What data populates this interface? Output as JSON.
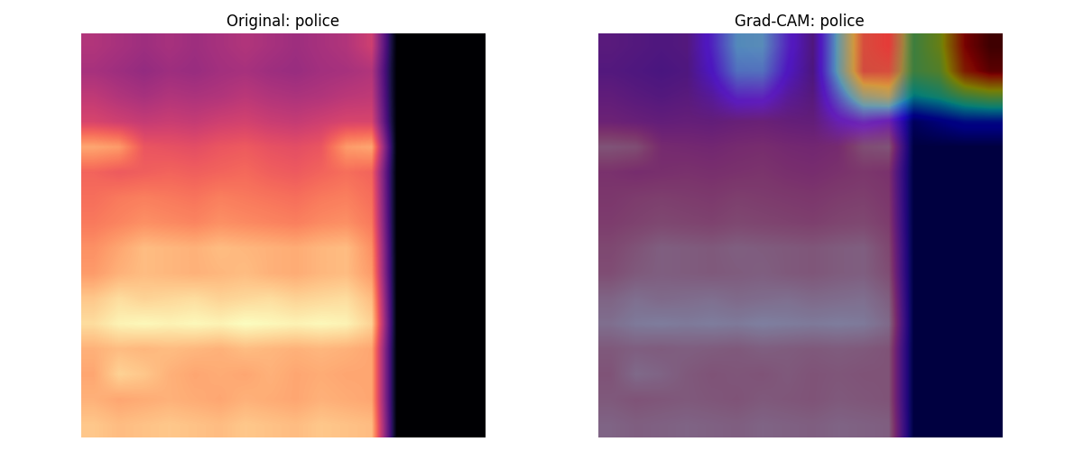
{
  "chart_data": [
    {
      "type": "heatmap",
      "title": "Original: police",
      "tick_labels": false,
      "cells": [
        [
          0.42,
          0.4,
          0.38,
          0.4,
          0.38,
          0.4,
          0.42,
          0.4,
          0.38,
          0.4,
          0.42,
          0.48,
          0,
          0,
          0,
          0
        ],
        [
          0.4,
          0.38,
          0.36,
          0.38,
          0.37,
          0.39,
          0.4,
          0.38,
          0.37,
          0.39,
          0.4,
          0.42,
          0,
          0,
          0,
          0
        ],
        [
          0.45,
          0.42,
          0.4,
          0.42,
          0.41,
          0.42,
          0.44,
          0.42,
          0.41,
          0.42,
          0.44,
          0.45,
          0,
          0,
          0,
          0
        ],
        [
          0.5,
          0.48,
          0.46,
          0.47,
          0.46,
          0.48,
          0.49,
          0.47,
          0.46,
          0.48,
          0.5,
          0.5,
          0,
          0,
          0,
          0
        ],
        [
          0.7,
          0.68,
          0.55,
          0.54,
          0.53,
          0.55,
          0.56,
          0.54,
          0.53,
          0.55,
          0.68,
          0.7,
          0,
          0,
          0,
          0
        ],
        [
          0.58,
          0.56,
          0.57,
          0.58,
          0.57,
          0.58,
          0.59,
          0.57,
          0.56,
          0.58,
          0.6,
          0.58,
          0,
          0,
          0,
          0
        ],
        [
          0.6,
          0.62,
          0.63,
          0.62,
          0.61,
          0.63,
          0.62,
          0.61,
          0.6,
          0.62,
          0.63,
          0.6,
          0,
          0,
          0,
          0
        ],
        [
          0.62,
          0.64,
          0.66,
          0.65,
          0.64,
          0.66,
          0.65,
          0.64,
          0.63,
          0.65,
          0.66,
          0.62,
          0,
          0,
          0,
          0
        ],
        [
          0.66,
          0.7,
          0.74,
          0.73,
          0.72,
          0.74,
          0.73,
          0.72,
          0.71,
          0.73,
          0.74,
          0.66,
          0,
          0,
          0,
          0
        ],
        [
          0.68,
          0.72,
          0.74,
          0.73,
          0.72,
          0.73,
          0.74,
          0.72,
          0.71,
          0.73,
          0.74,
          0.68,
          0,
          0,
          0,
          0
        ],
        [
          0.76,
          0.8,
          0.78,
          0.79,
          0.8,
          0.78,
          0.79,
          0.8,
          0.78,
          0.79,
          0.8,
          0.74,
          0,
          0,
          0,
          0
        ],
        [
          0.8,
          0.84,
          0.85,
          0.84,
          0.85,
          0.84,
          0.86,
          0.85,
          0.84,
          0.85,
          0.84,
          0.78,
          0,
          0,
          0,
          0
        ],
        [
          0.72,
          0.74,
          0.73,
          0.74,
          0.73,
          0.72,
          0.74,
          0.73,
          0.72,
          0.73,
          0.72,
          0.7,
          0,
          0,
          0,
          0
        ],
        [
          0.7,
          0.78,
          0.76,
          0.72,
          0.7,
          0.71,
          0.7,
          0.72,
          0.7,
          0.71,
          0.7,
          0.7,
          0,
          0,
          0,
          0
        ],
        [
          0.72,
          0.7,
          0.71,
          0.72,
          0.71,
          0.7,
          0.72,
          0.71,
          0.7,
          0.72,
          0.71,
          0.7,
          0,
          0,
          0,
          0
        ],
        [
          0.76,
          0.74,
          0.75,
          0.76,
          0.75,
          0.74,
          0.76,
          0.75,
          0.74,
          0.76,
          0.75,
          0.74,
          0,
          0,
          0,
          0
        ]
      ]
    },
    {
      "type": "heatmap",
      "title": "Grad-CAM: police",
      "tick_labels": false,
      "cells": [
        [
          0.42,
          0.4,
          0.38,
          0.4,
          0.38,
          0.4,
          0.42,
          0.4,
          0.38,
          0.4,
          0.42,
          0.48,
          0,
          0,
          0,
          0
        ],
        [
          0.4,
          0.38,
          0.36,
          0.38,
          0.37,
          0.39,
          0.4,
          0.38,
          0.37,
          0.39,
          0.4,
          0.42,
          0,
          0,
          0,
          0
        ],
        [
          0.45,
          0.42,
          0.4,
          0.42,
          0.41,
          0.42,
          0.44,
          0.42,
          0.41,
          0.42,
          0.44,
          0.45,
          0,
          0,
          0,
          0
        ],
        [
          0.5,
          0.48,
          0.46,
          0.47,
          0.46,
          0.48,
          0.49,
          0.47,
          0.46,
          0.48,
          0.5,
          0.5,
          0,
          0,
          0,
          0
        ],
        [
          0.7,
          0.68,
          0.55,
          0.54,
          0.53,
          0.55,
          0.56,
          0.54,
          0.53,
          0.55,
          0.68,
          0.7,
          0,
          0,
          0,
          0
        ],
        [
          0.58,
          0.56,
          0.57,
          0.58,
          0.57,
          0.58,
          0.59,
          0.57,
          0.56,
          0.58,
          0.6,
          0.58,
          0,
          0,
          0,
          0
        ],
        [
          0.6,
          0.62,
          0.63,
          0.62,
          0.61,
          0.63,
          0.62,
          0.61,
          0.6,
          0.62,
          0.63,
          0.6,
          0,
          0,
          0,
          0
        ],
        [
          0.62,
          0.64,
          0.66,
          0.65,
          0.64,
          0.66,
          0.65,
          0.64,
          0.63,
          0.65,
          0.66,
          0.62,
          0,
          0,
          0,
          0
        ],
        [
          0.66,
          0.7,
          0.74,
          0.73,
          0.72,
          0.74,
          0.73,
          0.72,
          0.71,
          0.73,
          0.74,
          0.66,
          0,
          0,
          0,
          0
        ],
        [
          0.68,
          0.72,
          0.74,
          0.73,
          0.72,
          0.73,
          0.74,
          0.72,
          0.71,
          0.73,
          0.74,
          0.68,
          0,
          0,
          0,
          0
        ],
        [
          0.76,
          0.8,
          0.78,
          0.79,
          0.8,
          0.78,
          0.79,
          0.8,
          0.78,
          0.79,
          0.8,
          0.74,
          0,
          0,
          0,
          0
        ],
        [
          0.8,
          0.84,
          0.85,
          0.84,
          0.85,
          0.84,
          0.86,
          0.85,
          0.84,
          0.85,
          0.84,
          0.78,
          0,
          0,
          0,
          0
        ],
        [
          0.72,
          0.74,
          0.73,
          0.74,
          0.73,
          0.72,
          0.74,
          0.73,
          0.72,
          0.73,
          0.72,
          0.7,
          0,
          0,
          0,
          0
        ],
        [
          0.7,
          0.78,
          0.76,
          0.72,
          0.7,
          0.71,
          0.7,
          0.72,
          0.7,
          0.71,
          0.7,
          0.7,
          0,
          0,
          0,
          0
        ],
        [
          0.72,
          0.7,
          0.71,
          0.72,
          0.71,
          0.7,
          0.72,
          0.71,
          0.7,
          0.72,
          0.71,
          0.7,
          0,
          0,
          0,
          0
        ],
        [
          0.76,
          0.74,
          0.75,
          0.76,
          0.75,
          0.74,
          0.76,
          0.75,
          0.74,
          0.76,
          0.75,
          0.74,
          0,
          0,
          0,
          0
        ]
      ],
      "cam_cells": [
        [
          0,
          0,
          0,
          0,
          0.15,
          0.35,
          0.35,
          0.15,
          0,
          0.4,
          0.8,
          0.85,
          0.5,
          0.6,
          0.9,
          1.0
        ],
        [
          0,
          0,
          0,
          0,
          0.12,
          0.3,
          0.3,
          0.12,
          0,
          0.4,
          0.8,
          0.8,
          0.5,
          0.55,
          0.85,
          0.95
        ],
        [
          0,
          0,
          0,
          0,
          0.05,
          0.15,
          0.15,
          0.05,
          0,
          0.25,
          0.5,
          0.55,
          0.35,
          0.4,
          0.5,
          0.55
        ],
        [
          0,
          0,
          0,
          0,
          0,
          0,
          0,
          0,
          0,
          0.1,
          0.15,
          0.1,
          0.05,
          0.1,
          0.15,
          0.15
        ],
        [
          0,
          0,
          0,
          0,
          0,
          0,
          0,
          0,
          0,
          0,
          0,
          0,
          0,
          0,
          0,
          0
        ],
        [
          0,
          0,
          0,
          0,
          0,
          0,
          0,
          0,
          0,
          0,
          0,
          0,
          0,
          0,
          0,
          0
        ],
        [
          0,
          0,
          0,
          0,
          0,
          0,
          0,
          0,
          0,
          0,
          0,
          0,
          0,
          0,
          0,
          0
        ],
        [
          0,
          0,
          0,
          0,
          0,
          0,
          0,
          0,
          0,
          0,
          0,
          0,
          0,
          0,
          0,
          0
        ],
        [
          0,
          0,
          0,
          0,
          0,
          0,
          0,
          0,
          0,
          0,
          0,
          0,
          0,
          0,
          0,
          0
        ],
        [
          0,
          0,
          0,
          0,
          0,
          0,
          0,
          0,
          0,
          0,
          0,
          0,
          0,
          0,
          0,
          0
        ],
        [
          0,
          0,
          0,
          0,
          0,
          0,
          0,
          0,
          0,
          0,
          0,
          0,
          0,
          0,
          0,
          0
        ],
        [
          0,
          0,
          0,
          0,
          0,
          0,
          0,
          0,
          0,
          0,
          0,
          0,
          0,
          0,
          0,
          0
        ],
        [
          0,
          0,
          0,
          0,
          0,
          0,
          0,
          0,
          0,
          0,
          0,
          0,
          0,
          0,
          0,
          0
        ],
        [
          0,
          0,
          0,
          0,
          0,
          0,
          0,
          0,
          0,
          0,
          0,
          0,
          0,
          0,
          0,
          0
        ],
        [
          0,
          0,
          0,
          0,
          0,
          0,
          0,
          0,
          0,
          0,
          0,
          0,
          0,
          0,
          0,
          0
        ],
        [
          0,
          0,
          0,
          0,
          0,
          0,
          0,
          0,
          0,
          0,
          0,
          0,
          0,
          0,
          0,
          0
        ]
      ]
    }
  ]
}
